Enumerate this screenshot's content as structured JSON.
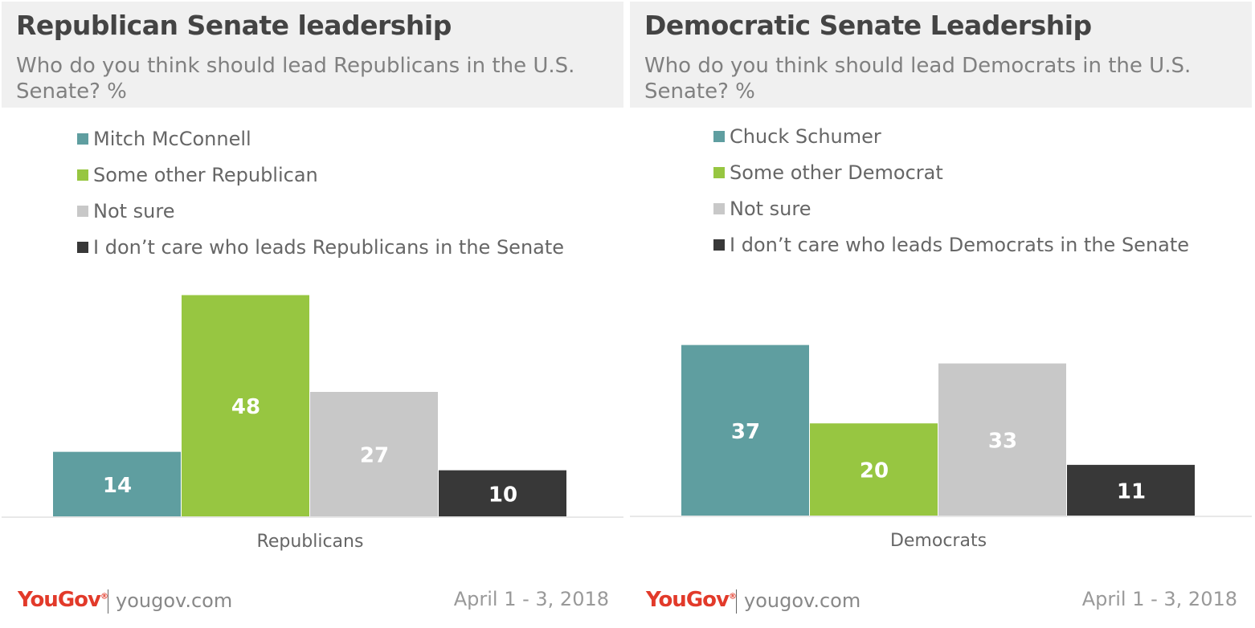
{
  "chart_data": [
    {
      "type": "bar",
      "title": "Republican Senate leadership",
      "subtitle": "Who do you think should lead Republicans in the U.S. Senate? %",
      "categories": [
        "Republicans"
      ],
      "series": [
        {
          "name": "Mitch McConnell",
          "values": [
            14
          ],
          "color": "#5f9ea0"
        },
        {
          "name": "Some other Republican",
          "values": [
            48
          ],
          "color": "#97c641"
        },
        {
          "name": "Not sure",
          "values": [
            27
          ],
          "color": "#c8c8c8"
        },
        {
          "name": "I don’t care who leads Republicans in the Senate",
          "values": [
            10
          ],
          "color": "#383838"
        }
      ],
      "ylim": [
        0,
        48
      ],
      "legend_position": "top-left",
      "grid": false,
      "value_labels": true
    },
    {
      "type": "bar",
      "title": "Democratic Senate Leadership",
      "subtitle": "Who do you think should lead Democrats in the U.S. Senate? %",
      "categories": [
        "Democrats"
      ],
      "series": [
        {
          "name": "Chuck Schumer",
          "values": [
            37
          ],
          "color": "#5f9ea0"
        },
        {
          "name": "Some other Democrat",
          "values": [
            20
          ],
          "color": "#97c641"
        },
        {
          "name": "Not sure",
          "values": [
            33
          ],
          "color": "#c8c8c8"
        },
        {
          "name": "I don’t care who leads Democrats in the Senate",
          "values": [
            11
          ],
          "color": "#383838"
        }
      ],
      "ylim": [
        0,
        48
      ],
      "legend_position": "top-left",
      "grid": false,
      "value_labels": true
    }
  ],
  "footer": {
    "brand": "YouGov",
    "url": "yougov.com",
    "date": "April 1 - 3, 2018"
  }
}
